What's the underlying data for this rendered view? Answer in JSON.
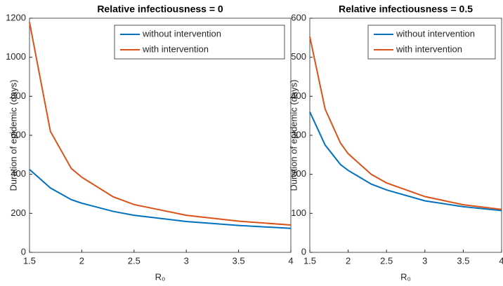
{
  "chart_data": [
    {
      "type": "line",
      "title": "Relative infectiousness = 0",
      "x_label": "R₀",
      "y_label": "Duration of epidemic (days)",
      "x": [
        1.5,
        1.7,
        1.9,
        2,
        2.3,
        2.5,
        3,
        3.5,
        4
      ],
      "series": [
        {
          "name": "without intervention",
          "color": "#0072bd",
          "values": [
            425,
            330,
            270,
            252,
            210,
            190,
            158,
            138,
            123
          ]
        },
        {
          "name": "with intervention",
          "color": "#d95319",
          "values": [
            1180,
            620,
            430,
            385,
            285,
            245,
            190,
            160,
            140
          ]
        }
      ],
      "xlim": [
        1.5,
        4
      ],
      "xticks": [
        1.5,
        2,
        2.5,
        3,
        3.5,
        4
      ],
      "ylim": [
        0,
        1200
      ],
      "yticks": [
        0,
        200,
        400,
        600,
        800,
        1000,
        1200
      ],
      "legend": "top-right"
    },
    {
      "type": "line",
      "title": "Relative infectiousness = 0.5",
      "x_label": "R₀",
      "y_label": "Duration of epidemic (days)",
      "x": [
        1.5,
        1.7,
        1.9,
        2,
        2.3,
        2.5,
        3,
        3.5,
        4
      ],
      "series": [
        {
          "name": "without intervention",
          "color": "#0072bd",
          "values": [
            360,
            275,
            225,
            210,
            175,
            160,
            132,
            117,
            107
          ]
        },
        {
          "name": "with intervention",
          "color": "#d95319",
          "values": [
            553,
            367,
            280,
            253,
            200,
            178,
            143,
            122,
            110
          ]
        }
      ],
      "xlim": [
        1.5,
        4
      ],
      "xticks": [
        1.5,
        2,
        2.5,
        3,
        3.5,
        4
      ],
      "ylim": [
        0,
        600
      ],
      "yticks": [
        0,
        100,
        200,
        300,
        400,
        500,
        600
      ],
      "legend": "top-right"
    }
  ]
}
